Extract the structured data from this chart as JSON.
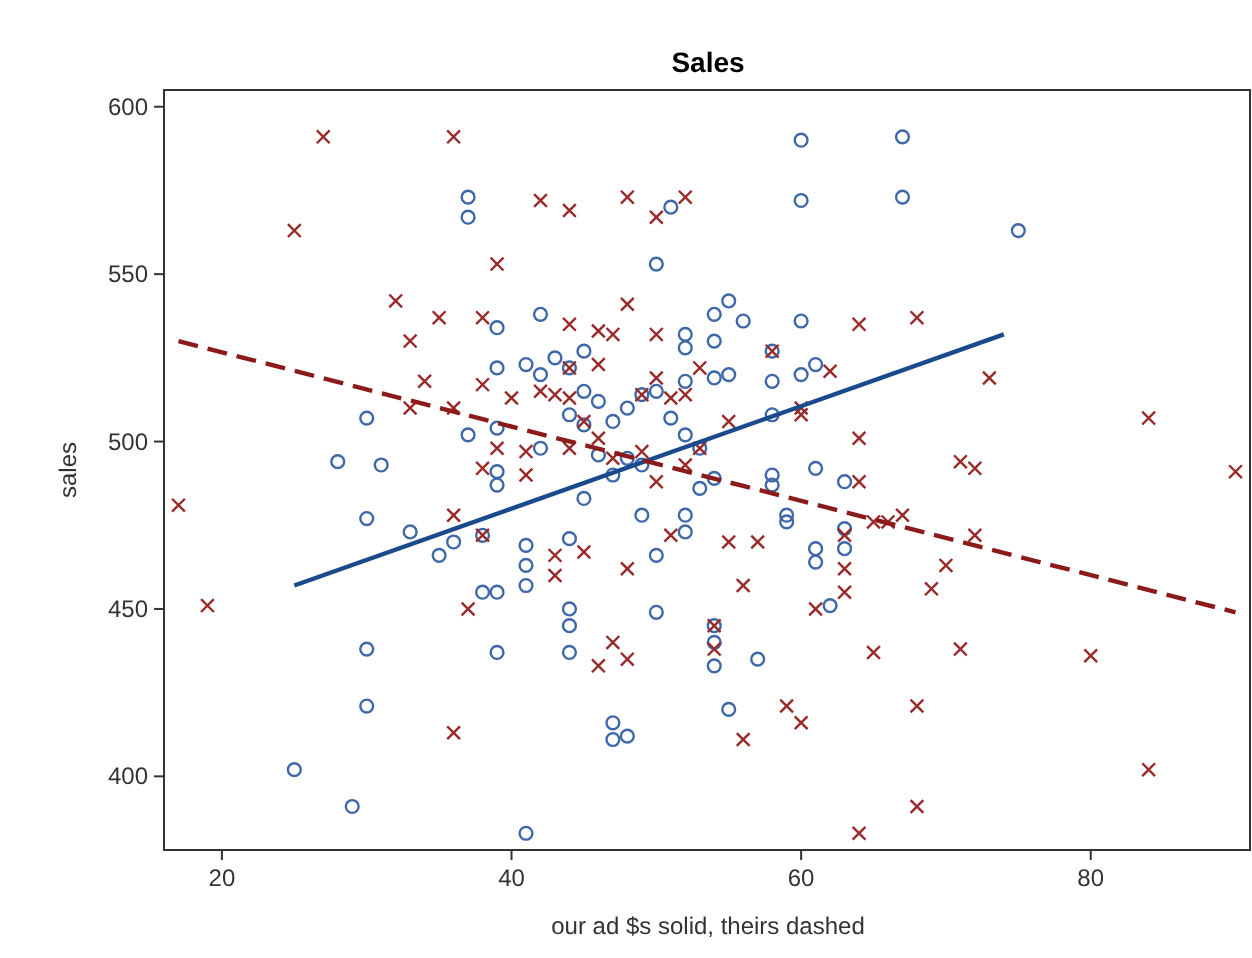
{
  "chart_data": {
    "type": "scatter",
    "title": "Sales",
    "xlabel": "our ad $s solid, theirs dashed",
    "ylabel": "sales",
    "xlim": [
      16,
      91
    ],
    "xticks": [
      20,
      40,
      60,
      80
    ],
    "ylim": [
      378,
      605
    ],
    "yticks": [
      400,
      450,
      500,
      550,
      600
    ],
    "grid": false,
    "series": [
      {
        "marker": "circle",
        "color": "#3f68a8",
        "x": [
          25,
          29,
          28,
          30,
          30,
          30,
          30,
          31,
          33,
          35,
          36,
          37,
          37,
          37,
          38,
          38,
          39,
          39,
          39,
          39,
          39,
          39,
          39,
          41,
          41,
          41,
          41,
          41,
          42,
          42,
          42,
          43,
          44,
          44,
          44,
          44,
          44,
          44,
          45,
          45,
          45,
          45,
          46,
          46,
          47,
          47,
          47,
          47,
          48,
          48,
          48,
          49,
          49,
          49,
          50,
          50,
          50,
          50,
          51,
          51,
          52,
          52,
          52,
          52,
          52,
          52,
          53,
          53,
          54,
          54,
          54,
          54,
          54,
          54,
          54,
          55,
          55,
          55,
          56,
          57,
          58,
          58,
          58,
          58,
          58,
          59,
          59,
          60,
          60,
          60,
          60,
          61,
          61,
          61,
          61,
          62,
          63,
          63,
          63,
          67,
          67,
          75
        ],
        "values": [
          402,
          391,
          494,
          507,
          477,
          438,
          421,
          493,
          473,
          466,
          470,
          573,
          567,
          502,
          472,
          455,
          522,
          534,
          504,
          491,
          487,
          455,
          437,
          523,
          469,
          463,
          457,
          383,
          520,
          538,
          498,
          525,
          522,
          508,
          471,
          450,
          445,
          437,
          527,
          515,
          505,
          483,
          512,
          496,
          506,
          490,
          416,
          411,
          412,
          510,
          495,
          514,
          493,
          478,
          553,
          515,
          466,
          449,
          570,
          507,
          532,
          528,
          518,
          502,
          473,
          478,
          486,
          498,
          538,
          530,
          519,
          489,
          445,
          440,
          433,
          542,
          520,
          420,
          536,
          435,
          527,
          518,
          508,
          490,
          487,
          478,
          476,
          590,
          572,
          536,
          520,
          523,
          492,
          468,
          464,
          451,
          488,
          474,
          468,
          591,
          573,
          563
        ]
      },
      {
        "marker": "cross",
        "color": "#9a2a2a",
        "x": [
          17,
          19,
          25,
          27,
          32,
          33,
          33,
          34,
          35,
          36,
          36,
          36,
          36,
          37,
          38,
          38,
          38,
          38,
          39,
          39,
          40,
          41,
          41,
          42,
          42,
          43,
          43,
          43,
          44,
          44,
          44,
          44,
          44,
          45,
          45,
          46,
          46,
          46,
          46,
          47,
          47,
          47,
          48,
          48,
          48,
          48,
          49,
          49,
          50,
          50,
          50,
          50,
          51,
          51,
          52,
          52,
          52,
          53,
          53,
          54,
          54,
          55,
          55,
          56,
          56,
          57,
          58,
          59,
          60,
          60,
          60,
          61,
          62,
          63,
          63,
          63,
          64,
          64,
          64,
          64,
          65,
          65,
          66,
          67,
          68,
          68,
          68,
          69,
          70,
          71,
          71,
          72,
          72,
          73,
          80,
          84,
          84,
          90
        ],
        "values": [
          481,
          451,
          563,
          591,
          542,
          530,
          510,
          518,
          537,
          591,
          510,
          478,
          413,
          450,
          537,
          517,
          492,
          472,
          553,
          498,
          513,
          490,
          497,
          572,
          515,
          514,
          466,
          460,
          569,
          535,
          522,
          513,
          498,
          506,
          467,
          523,
          533,
          501,
          433,
          532,
          440,
          495,
          573,
          541,
          435,
          462,
          514,
          497,
          567,
          532,
          519,
          488,
          513,
          472,
          573,
          514,
          493,
          498,
          522,
          445,
          438,
          470,
          506,
          457,
          411,
          470,
          527,
          421,
          416,
          508,
          510,
          450,
          521,
          455,
          462,
          472,
          535,
          501,
          488,
          383,
          437,
          476,
          476,
          478,
          537,
          421,
          391,
          456,
          463,
          494,
          438,
          472,
          492,
          519,
          436,
          507,
          402,
          491
        ]
      },
      {
        "type": "line",
        "line_style": "solid",
        "color": "#1a4a8c",
        "x": [
          25,
          74
        ],
        "values": [
          457,
          532
        ]
      },
      {
        "type": "line",
        "line_style": "dashed",
        "color": "#8b1a1a",
        "x": [
          17,
          90
        ],
        "values": [
          530,
          449
        ]
      }
    ]
  }
}
